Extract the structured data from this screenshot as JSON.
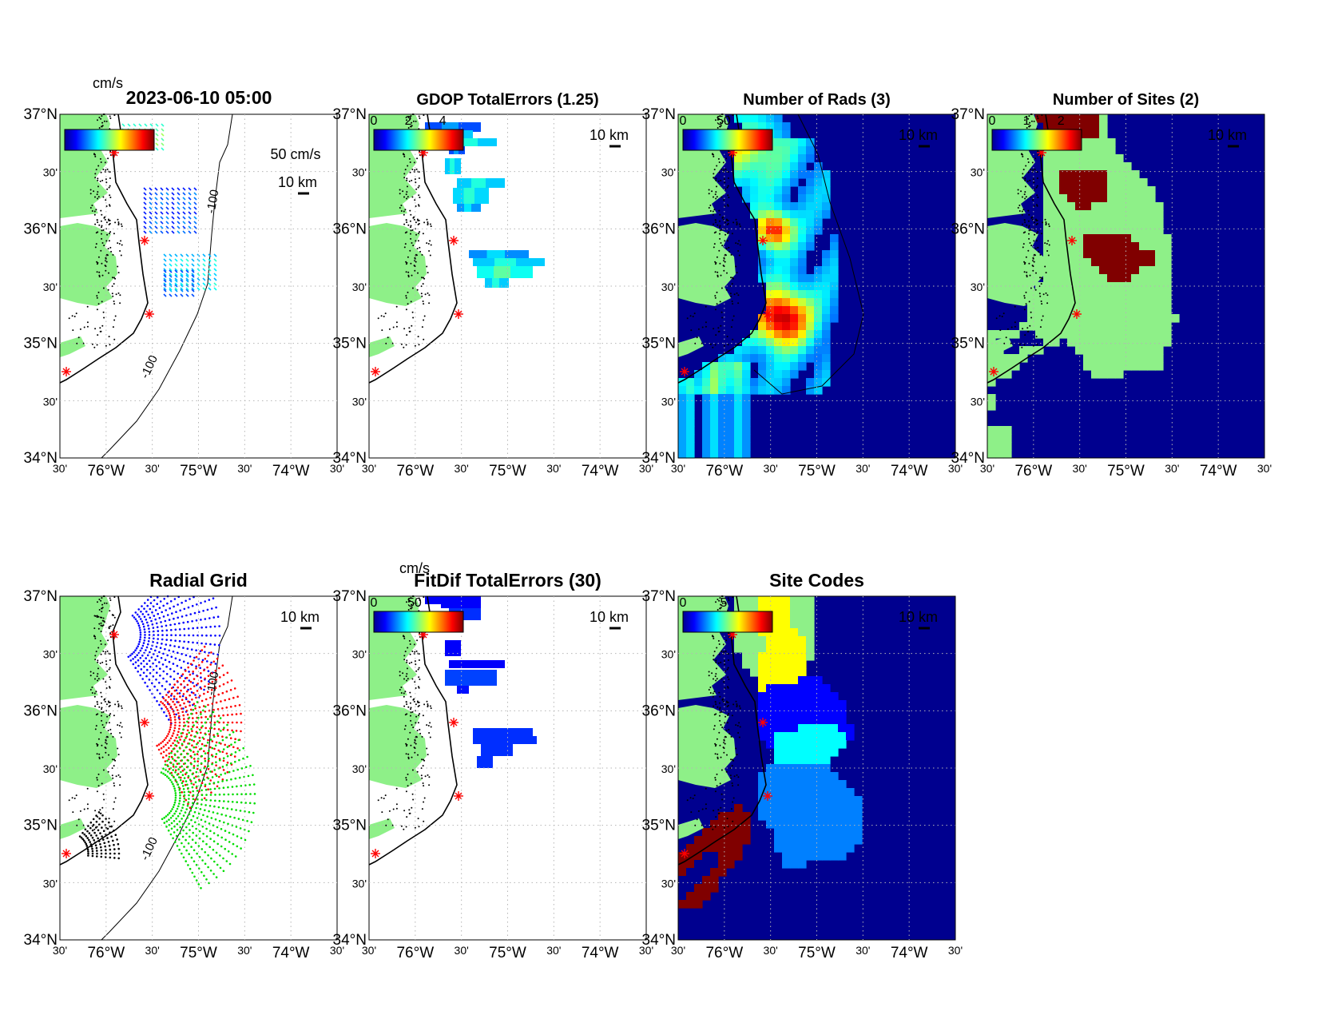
{
  "figure": {
    "timestamp": "2023-06-10 05:00",
    "lat_ticks": [
      "37°N",
      "30'",
      "36°N",
      "30'",
      "35°N",
      "30'",
      "34°N"
    ],
    "lon_ticks": [
      "30'",
      "76°W",
      "30'",
      "75°W",
      "30'",
      "74°W",
      "30'"
    ],
    "scale_bar": "10 km",
    "contour_label": "-100"
  },
  "chart_data": [
    {
      "type": "vector-map",
      "title": "2023-06-10 05:00",
      "colorbar_unit": "cm/s",
      "reference_vector": "50 cm/s",
      "xlim": [
        -76.5,
        -73.5
      ],
      "ylim": [
        34.0,
        37.0
      ]
    },
    {
      "type": "heatmap",
      "title": "GDOP TotalErrors (1.25)",
      "colorbar_ticks": [
        "0",
        "2",
        "4"
      ],
      "xlim": [
        -76.5,
        -73.5
      ],
      "ylim": [
        34.0,
        37.0
      ]
    },
    {
      "type": "heatmap",
      "title": "Number of Rads (3)",
      "colorbar_ticks": [
        "0",
        "50"
      ],
      "xlim": [
        -76.5,
        -73.5
      ],
      "ylim": [
        34.0,
        37.0
      ]
    },
    {
      "type": "heatmap",
      "title": "Number of Sites (2)",
      "colorbar_ticks": [
        "0",
        "1",
        "2"
      ],
      "categories": [
        0,
        1,
        2
      ],
      "xlim": [
        -76.5,
        -73.5
      ],
      "ylim": [
        34.0,
        37.0
      ]
    },
    {
      "type": "scatter",
      "title": "Radial Grid",
      "xlim": [
        -76.5,
        -73.5
      ],
      "ylim": [
        34.0,
        37.0
      ]
    },
    {
      "type": "heatmap",
      "title": "FitDif TotalErrors (30)",
      "colorbar_unit": "cm/s",
      "colorbar_ticks": [
        "0",
        "50"
      ],
      "xlim": [
        -76.5,
        -73.5
      ],
      "ylim": [
        34.0,
        37.0
      ]
    },
    {
      "type": "heatmap",
      "title": "Site Codes",
      "colorbar_ticks": [
        "0",
        "5"
      ],
      "xlim": [
        -76.5,
        -73.5
      ],
      "ylim": [
        34.0,
        37.0
      ]
    }
  ],
  "colors": {
    "land": "#8ef088",
    "ocean_dark": "#00008f",
    "site_marker": "#ff0000",
    "sites_two": "#800000"
  }
}
